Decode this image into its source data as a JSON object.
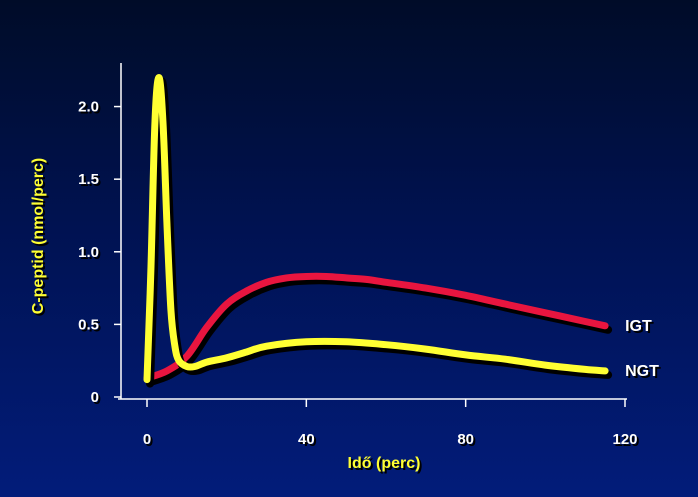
{
  "colors": {
    "igt_line": "#e8153f",
    "ngt_line": "#ffff33",
    "axis_title": "#ffff33",
    "tick_text": "#ffffff",
    "axis_line": "#ffffff"
  },
  "chart_data": {
    "type": "line",
    "title": "",
    "xlabel": "Idő (perc)",
    "ylabel": "C-peptid (nmol/perc)",
    "xlim": [
      0,
      120
    ],
    "ylim": [
      0,
      2.3
    ],
    "xticks": [
      0,
      40,
      80,
      120
    ],
    "xtick_labels": [
      "0",
      "40",
      "80",
      "120"
    ],
    "yticks": [
      0,
      0.5,
      1.0,
      1.5,
      2.0
    ],
    "ytick_labels": [
      "0",
      "0.5",
      "1.0",
      "1.5",
      "2.0"
    ],
    "grid": false,
    "series": [
      {
        "name": "IGT",
        "color": "#e8153f",
        "x": [
          0,
          5,
          10,
          15,
          20,
          25,
          30,
          35,
          40,
          45,
          50,
          55,
          60,
          70,
          80,
          90,
          100,
          110,
          115
        ],
        "y": [
          0.13,
          0.18,
          0.28,
          0.48,
          0.64,
          0.73,
          0.79,
          0.82,
          0.83,
          0.83,
          0.82,
          0.81,
          0.79,
          0.75,
          0.7,
          0.64,
          0.58,
          0.52,
          0.49
        ]
      },
      {
        "name": "NGT",
        "color": "#ffff33",
        "x": [
          0,
          1,
          2,
          3,
          4,
          5,
          6,
          7,
          8,
          10,
          12,
          15,
          20,
          25,
          30,
          40,
          50,
          60,
          70,
          80,
          90,
          100,
          110,
          115
        ],
        "y": [
          0.12,
          0.9,
          1.9,
          2.2,
          1.9,
          1.2,
          0.6,
          0.35,
          0.25,
          0.21,
          0.21,
          0.24,
          0.27,
          0.31,
          0.35,
          0.38,
          0.38,
          0.36,
          0.33,
          0.29,
          0.26,
          0.22,
          0.19,
          0.18
        ]
      }
    ]
  }
}
